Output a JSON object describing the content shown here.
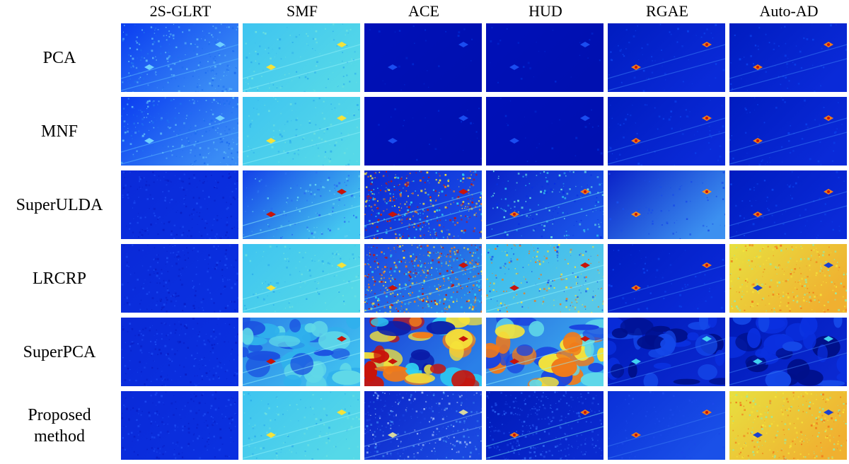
{
  "columns": [
    "2S-GLRT",
    "SMF",
    "ACE",
    "HUD",
    "RGAE",
    "Auto-AD"
  ],
  "rows": [
    {
      "label": "PCA",
      "cells": [
        "light-blue-speckle",
        "cyan-teal",
        "dark-blue",
        "dark-blue",
        "dark-blue-hot-targets",
        "dark-blue-hot-targets"
      ]
    },
    {
      "label": "MNF",
      "cells": [
        "light-blue-speckle",
        "cyan-teal",
        "dark-blue",
        "dark-blue",
        "dark-blue-hot-targets",
        "dark-blue-hot-targets"
      ]
    },
    {
      "label": "SuperULDA",
      "cells": [
        "dark-blue-noise",
        "blue-cyan-gradient",
        "jet-scatter",
        "blue-cyan-patches",
        "blue-gradient",
        "dark-blue-hot-targets"
      ]
    },
    {
      "label": "LRCRP",
      "cells": [
        "dark-blue-noise",
        "cyan-teal",
        "jet-mixed",
        "cyan-orange",
        "dark-blue-hot-targets",
        "yellow-orange"
      ]
    },
    {
      "label": "SuperPCA",
      "cells": [
        "dark-blue-noise",
        "cyan-segments",
        "jet-segments",
        "cyan-yellow-segments",
        "dark-blue-segments",
        "dark-blue-segments"
      ]
    },
    {
      "label": "Proposed\nmethod",
      "cells": [
        "dark-blue-noise",
        "cyan-teal",
        "blue-grain",
        "dark-blue-grain",
        "blue-hot-targets",
        "yellow-orange"
      ]
    }
  ],
  "palette": {
    "background": "#ffffff",
    "jet_dark": "#00008f",
    "jet_blue": "#0a3cf0",
    "jet_cyan": "#2fd0f0",
    "jet_yellow": "#f5e33a",
    "jet_orange": "#f07a1a",
    "jet_red": "#c8140a"
  }
}
